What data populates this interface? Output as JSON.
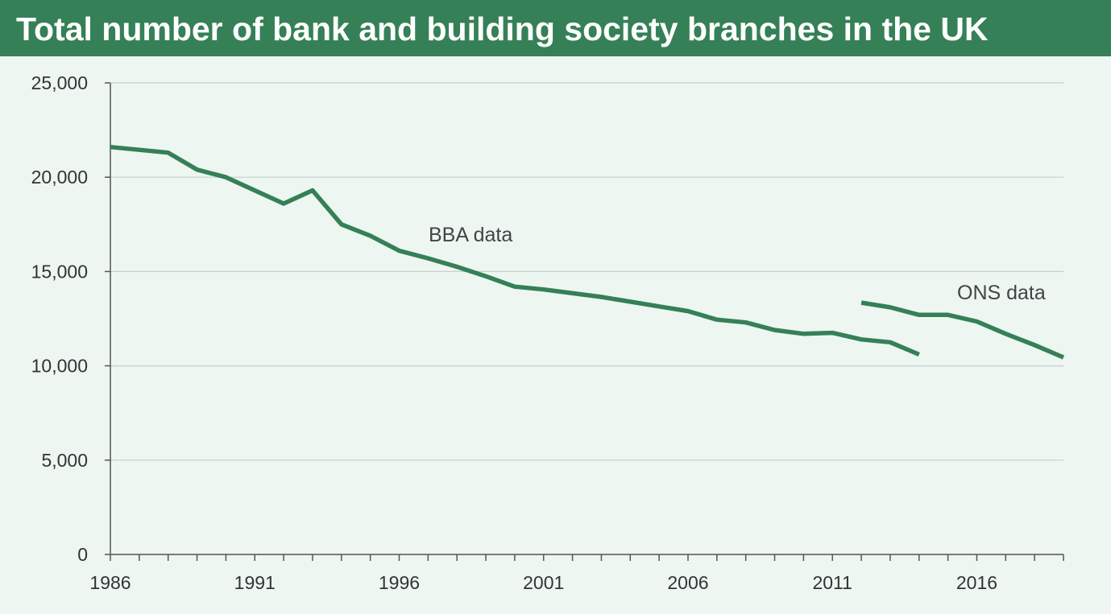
{
  "chart_data": {
    "type": "line",
    "title": "Total number of bank and building society branches in the UK",
    "xlabel": "",
    "ylabel": "",
    "xlim": [
      1986,
      2019
    ],
    "ylim": [
      0,
      25000
    ],
    "y_ticks": [
      0,
      5000,
      10000,
      15000,
      20000,
      25000
    ],
    "y_tick_labels": [
      "0",
      "5,000",
      "10,000",
      "15,000",
      "20,000",
      "25,000"
    ],
    "x_tick_labels": [
      "1986",
      "1991",
      "1996",
      "2001",
      "2006",
      "2011",
      "2016"
    ],
    "x_tick_values": [
      1986,
      1991,
      1996,
      2001,
      2006,
      2011,
      2016
    ],
    "grid": true,
    "line_color": "#358057",
    "series": [
      {
        "name": "BBA data",
        "x": [
          1986,
          1987,
          1988,
          1989,
          1990,
          1991,
          1992,
          1993,
          1994,
          1995,
          1996,
          1997,
          1998,
          1999,
          2000,
          2001,
          2002,
          2003,
          2004,
          2005,
          2006,
          2007,
          2008,
          2009,
          2010,
          2011,
          2012,
          2013,
          2014
        ],
        "values": [
          21600,
          21450,
          21300,
          20400,
          20000,
          19300,
          18600,
          19300,
          17500,
          16900,
          16100,
          15700,
          15250,
          14750,
          14200,
          14050,
          13850,
          13650,
          13400,
          13150,
          12900,
          12450,
          12300,
          11900,
          11700,
          11750,
          11400,
          11250,
          10600
        ]
      },
      {
        "name": "ONS data",
        "x": [
          2012,
          2013,
          2014,
          2015,
          2016,
          2017,
          2018,
          2019
        ],
        "values": [
          13350,
          13100,
          12700,
          12700,
          12350,
          11700,
          11100,
          10450
        ]
      }
    ]
  }
}
